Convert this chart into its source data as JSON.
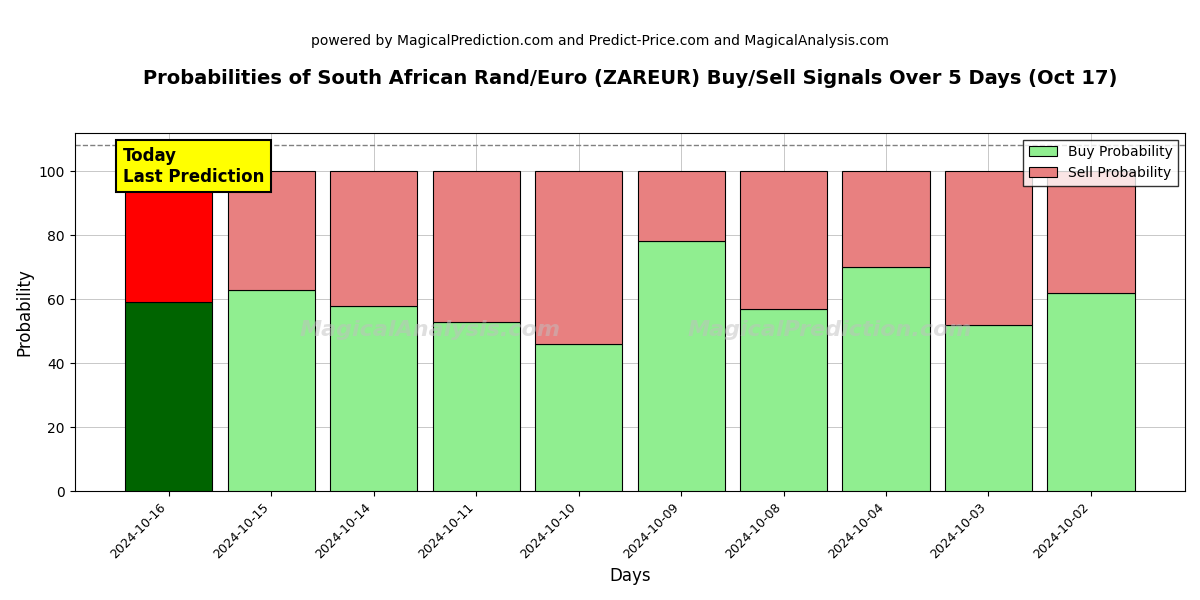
{
  "title": "Probabilities of South African Rand/Euro (ZAREUR) Buy/Sell Signals Over 5 Days (Oct 17)",
  "subtitle": "powered by MagicalPrediction.com and Predict-Price.com and MagicalAnalysis.com",
  "xlabel": "Days",
  "ylabel": "Probability",
  "dates": [
    "2024-10-16",
    "2024-10-15",
    "2024-10-14",
    "2024-10-11",
    "2024-10-10",
    "2024-10-09",
    "2024-10-08",
    "2024-10-04",
    "2024-10-03",
    "2024-10-02"
  ],
  "buy_values": [
    59,
    63,
    58,
    53,
    46,
    78,
    57,
    70,
    52,
    62
  ],
  "sell_values": [
    41,
    37,
    42,
    47,
    54,
    22,
    43,
    30,
    48,
    38
  ],
  "today_index": 0,
  "today_buy_color": "#006400",
  "today_sell_color": "#FF0000",
  "buy_color": "#90EE90",
  "sell_color": "#E88080",
  "today_annotation_bg": "#FFFF00",
  "today_annotation_text": "Today\nLast Prediction",
  "legend_buy_label": "Buy Probability",
  "legend_sell_label": "Sell Probability",
  "ylim": [
    0,
    112
  ],
  "yticks": [
    0,
    20,
    40,
    60,
    80,
    100
  ],
  "dashed_line_y": 108,
  "bar_width": 0.85,
  "figsize": [
    12,
    6
  ],
  "dpi": 100,
  "title_fontsize": 14,
  "subtitle_fontsize": 10,
  "axis_label_fontsize": 12,
  "tick_fontsize": 9
}
